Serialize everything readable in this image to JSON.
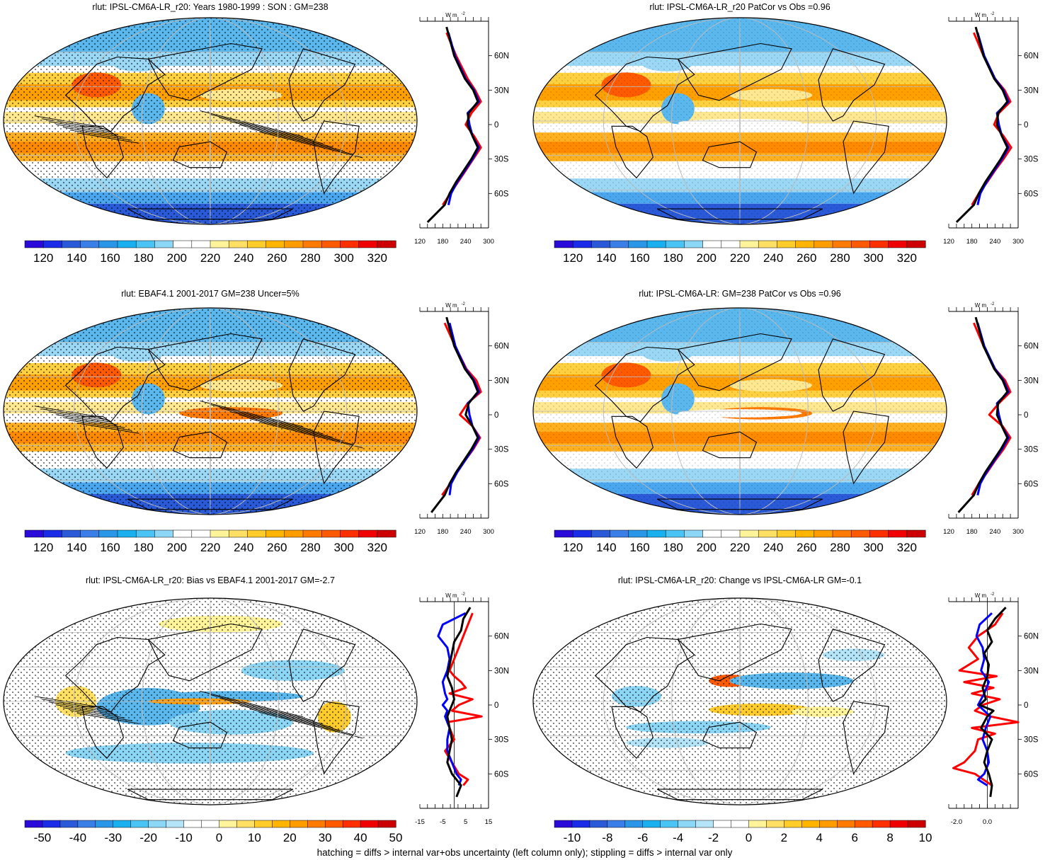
{
  "footer_note": "hatching = diffs > internal var+obs uncertainty (left column only); stippling = diffs > internal var only",
  "zonal_unit": "W m",
  "zonal_unit_sup": "-2",
  "lat_ticks": [
    "60N",
    "30N",
    "0",
    "30S",
    "60S"
  ],
  "chart_data": [
    {
      "type": "heatmap",
      "title": "rlut: IPSL-CM6A-LR_r20: Years 1980-1999 : SON : GM=238",
      "colorbar_ticks": [
        "120",
        "140",
        "160",
        "180",
        "200",
        "220",
        "240",
        "260",
        "280",
        "300",
        "320"
      ],
      "colorbar_scheme": "sequential",
      "pattern": "abs",
      "hatching": true,
      "zonal": {
        "xlim": [
          120,
          300
        ],
        "ticks": [
          "120",
          "180",
          "240",
          "300"
        ],
        "series": [
          {
            "name": "",
            "color": "#ff0000",
            "lat": [
              80,
              60,
              40,
              30,
              20,
              10,
              0,
              -10,
              -20,
              -30,
              -40,
              -50,
              -60,
              -70
            ],
            "values": [
              190,
              215,
              245,
              265,
              280,
              255,
              240,
              262,
              280,
              260,
              240,
              220,
              200,
              180
            ]
          },
          {
            "name": "",
            "color": "#0000ff",
            "lat": [
              80,
              60,
              40,
              30,
              20,
              10,
              0,
              -10,
              -20,
              -30,
              -40,
              -50,
              -60,
              -70
            ],
            "values": [
              195,
              212,
              240,
              262,
              275,
              245,
              250,
              258,
              275,
              258,
              238,
              218,
              202,
              195
            ]
          },
          {
            "name": "",
            "color": "#000000",
            "lat": [
              85,
              60,
              40,
              30,
              20,
              10,
              0,
              -10,
              -20,
              -30,
              -40,
              -50,
              -60,
              -70,
              -85
            ],
            "values": [
              190,
              210,
              238,
              260,
              272,
              248,
              245,
              258,
              272,
              255,
              235,
              215,
              198,
              185,
              140
            ]
          }
        ]
      }
    },
    {
      "type": "heatmap",
      "title": "rlut: IPSL-CM6A-LR_r20 PatCor vs Obs =0.96",
      "colorbar_ticks": [
        "120",
        "140",
        "160",
        "180",
        "200",
        "220",
        "240",
        "260",
        "280",
        "300",
        "320"
      ],
      "colorbar_scheme": "sequential",
      "pattern": "abs",
      "hatching": false,
      "zonal": {
        "xlim": [
          120,
          300
        ],
        "ticks": [
          "120",
          "180",
          "240",
          "300"
        ],
        "series": [
          {
            "name": "",
            "color": "#ff0000",
            "lat": [
              80,
              60,
              40,
              30,
              20,
              10,
              0,
              -10,
              -20,
              -30,
              -40,
              -50,
              -60,
              -70
            ],
            "values": [
              185,
              210,
              240,
              265,
              280,
              250,
              238,
              262,
              282,
              262,
              240,
              220,
              198,
              180
            ]
          },
          {
            "name": "",
            "color": "#0000ff",
            "lat": [
              80,
              60,
              40,
              30,
              20,
              10,
              0,
              -10,
              -20,
              -30,
              -40,
              -50,
              -60,
              -70
            ],
            "values": [
              195,
              212,
              240,
              262,
              275,
              245,
              250,
              258,
              275,
              258,
              238,
              218,
              202,
              195
            ]
          },
          {
            "name": "",
            "color": "#000000",
            "lat": [
              85,
              60,
              40,
              30,
              20,
              10,
              0,
              -10,
              -20,
              -30,
              -40,
              -50,
              -60,
              -70,
              -85
            ],
            "values": [
              190,
              210,
              238,
              260,
              272,
              248,
              245,
              258,
              272,
              255,
              235,
              215,
              198,
              185,
              140
            ]
          }
        ]
      }
    },
    {
      "type": "heatmap",
      "title": "rlut: EBAF4.1 2001-2017 GM=238 Uncer=5%",
      "colorbar_ticks": [
        "120",
        "140",
        "160",
        "180",
        "200",
        "220",
        "240",
        "260",
        "280",
        "300",
        "320"
      ],
      "colorbar_scheme": "sequential",
      "pattern": "abs",
      "hatching": true,
      "zonal": {
        "xlim": [
          120,
          300
        ],
        "ticks": [
          "120",
          "180",
          "240",
          "300"
        ],
        "series": [
          {
            "name": "",
            "color": "#ff0000",
            "lat": [
              80,
              60,
              40,
              30,
              20,
              10,
              0,
              -10,
              -20,
              -30,
              -40,
              -50,
              -60,
              -70
            ],
            "values": [
              185,
              212,
              242,
              268,
              280,
              245,
              225,
              258,
              278,
              260,
              238,
              218,
              200,
              178
            ]
          },
          {
            "name": "",
            "color": "#0000ff",
            "lat": [
              80,
              60,
              40,
              30,
              20,
              10,
              0,
              -10,
              -20,
              -30,
              -40,
              -50,
              -60,
              -70
            ],
            "values": [
              198,
              213,
              240,
              262,
              275,
              246,
              250,
              258,
              275,
              258,
              238,
              218,
              202,
              198
            ]
          },
          {
            "name": "",
            "color": "#000000",
            "lat": [
              85,
              60,
              40,
              30,
              20,
              10,
              0,
              -10,
              -20,
              -30,
              -40,
              -50,
              -60,
              -70,
              -85
            ],
            "values": [
              190,
              210,
              238,
              260,
              272,
              248,
              240,
              258,
              272,
              255,
              235,
              215,
              198,
              185,
              150
            ]
          }
        ]
      }
    },
    {
      "type": "heatmap",
      "title": "rlut: IPSL-CM6A-LR: GM=238 PatCor vs Obs =0.96",
      "colorbar_ticks": [
        "120",
        "140",
        "160",
        "180",
        "200",
        "220",
        "240",
        "260",
        "280",
        "300",
        "320"
      ],
      "colorbar_scheme": "sequential",
      "pattern": "abs",
      "hatching": false,
      "zonal": {
        "xlim": [
          120,
          300
        ],
        "ticks": [
          "120",
          "180",
          "240",
          "300"
        ],
        "series": [
          {
            "name": "",
            "color": "#ff0000",
            "lat": [
              80,
              60,
              40,
              30,
              20,
              10,
              0,
              -10,
              -20,
              -30,
              -40,
              -50,
              -60,
              -70
            ],
            "values": [
              185,
              210,
              240,
              266,
              280,
              250,
              225,
              260,
              280,
              262,
              240,
              220,
              198,
              180
            ]
          },
          {
            "name": "",
            "color": "#0000ff",
            "lat": [
              80,
              60,
              40,
              30,
              20,
              10,
              0,
              -10,
              -20,
              -30,
              -40,
              -50,
              -60,
              -70
            ],
            "values": [
              195,
              212,
              240,
              262,
              275,
              245,
              250,
              258,
              275,
              258,
              238,
              218,
              202,
              195
            ]
          },
          {
            "name": "",
            "color": "#000000",
            "lat": [
              85,
              60,
              40,
              30,
              20,
              10,
              0,
              -10,
              -20,
              -30,
              -40,
              -50,
              -60,
              -70,
              -85
            ],
            "values": [
              190,
              210,
              238,
              260,
              272,
              248,
              245,
              258,
              272,
              255,
              235,
              215,
              198,
              185,
              145
            ]
          }
        ]
      }
    },
    {
      "type": "heatmap",
      "title": "rlut: IPSL-CM6A-LR_r20: Bias vs EBAF4.1 2001-2017  GM=-2.7",
      "colorbar_ticks": [
        "-50",
        "-40",
        "-30",
        "-20",
        "-10",
        "0",
        "10",
        "20",
        "30",
        "40",
        "50"
      ],
      "colorbar_scheme": "diverging",
      "pattern": "bias",
      "hatching": true,
      "zonal": {
        "xlim": [
          -15,
          15
        ],
        "ticks": [
          "-15",
          "-5",
          "5",
          "15"
        ],
        "series": [
          {
            "name": "",
            "color": "#ff0000",
            "lat": [
              80,
              70,
              60,
              50,
              40,
              30,
              25,
              20,
              15,
              10,
              5,
              0,
              -5,
              -10,
              -15,
              -20,
              -30,
              -40,
              -50,
              -60,
              -65,
              -70
            ],
            "values": [
              8,
              6,
              4,
              2,
              0,
              -2,
              0,
              3,
              5,
              -2,
              8,
              2,
              -1,
              12,
              -3,
              -2,
              0,
              -4,
              -1,
              2,
              6,
              4
            ]
          },
          {
            "name": "",
            "color": "#0000ff",
            "lat": [
              80,
              70,
              60,
              50,
              40,
              30,
              20,
              10,
              5,
              0,
              -5,
              -10,
              -20,
              -30,
              -40,
              -50,
              -60,
              -65,
              -70
            ],
            "values": [
              5,
              -5,
              -7,
              -3,
              -2,
              -3,
              -5,
              -4,
              -3,
              -5,
              -3,
              -4,
              -2,
              -3,
              -3,
              -1,
              1,
              3,
              2
            ]
          },
          {
            "name": "",
            "color": "#000000",
            "lat": [
              85,
              75,
              65,
              55,
              45,
              35,
              25,
              15,
              5,
              0,
              -5,
              -10,
              -20,
              -30,
              -40,
              -50,
              -60,
              -70,
              -80
            ],
            "values": [
              7,
              4,
              3,
              0,
              -1,
              -2,
              -3,
              -1,
              0,
              -1,
              -2,
              -3,
              -2,
              -1,
              -2,
              -3,
              -1,
              3,
              1
            ]
          }
        ]
      }
    },
    {
      "type": "heatmap",
      "title": "rlut: IPSL-CM6A-LR_r20: Change vs IPSL-CM6A-LR GM=-0.1",
      "colorbar_ticks": [
        "-10",
        "-8",
        "-6",
        "-4",
        "-2",
        "0",
        "2",
        "4",
        "6",
        "8",
        "10"
      ],
      "colorbar_scheme": "diverging",
      "pattern": "change",
      "hatching": false,
      "zonal": {
        "xlim": [
          -2.5,
          2
        ],
        "ticks": [
          "-2.0",
          "0.0"
        ],
        "series": [
          {
            "name": "",
            "color": "#ff0000",
            "lat": [
              80,
              70,
              60,
              50,
              40,
              30,
              25,
              20,
              15,
              10,
              5,
              0,
              -5,
              -10,
              -15,
              -20,
              -25,
              -30,
              -40,
              -50,
              -55,
              -60,
              -70
            ],
            "values": [
              1.0,
              0.5,
              -0.6,
              -1.2,
              -0.6,
              -1.8,
              0.6,
              -1.5,
              0.4,
              -1.0,
              0.8,
              -0.3,
              -0.8,
              0.2,
              2.0,
              -1.0,
              0.5,
              -0.6,
              -0.8,
              -1.5,
              -2.2,
              -0.8,
              0.3
            ]
          },
          {
            "name": "",
            "color": "#0000ff",
            "lat": [
              80,
              70,
              60,
              50,
              40,
              30,
              20,
              10,
              0,
              -10,
              -20,
              -30,
              -40,
              -50,
              -60,
              -65,
              -70
            ],
            "values": [
              0.3,
              -0.5,
              -0.7,
              -0.3,
              -0.2,
              -0.4,
              0.1,
              -0.2,
              -0.6,
              0.2,
              -0.1,
              -0.3,
              0.0,
              0.1,
              -0.2,
              -0.6,
              0.0
            ]
          },
          {
            "name": "",
            "color": "#000000",
            "lat": [
              85,
              75,
              65,
              55,
              45,
              35,
              25,
              15,
              5,
              0,
              -5,
              -10,
              -20,
              -30,
              -40,
              -50,
              -60,
              -70,
              -80
            ],
            "values": [
              1.2,
              0.5,
              0.0,
              0.3,
              -0.2,
              0.1,
              0.0,
              -0.3,
              -0.1,
              -0.5,
              0.4,
              0.0,
              -0.4,
              0.3,
              0.0,
              -0.2,
              0.1,
              0.3,
              0.2
            ]
          }
        ]
      }
    }
  ]
}
